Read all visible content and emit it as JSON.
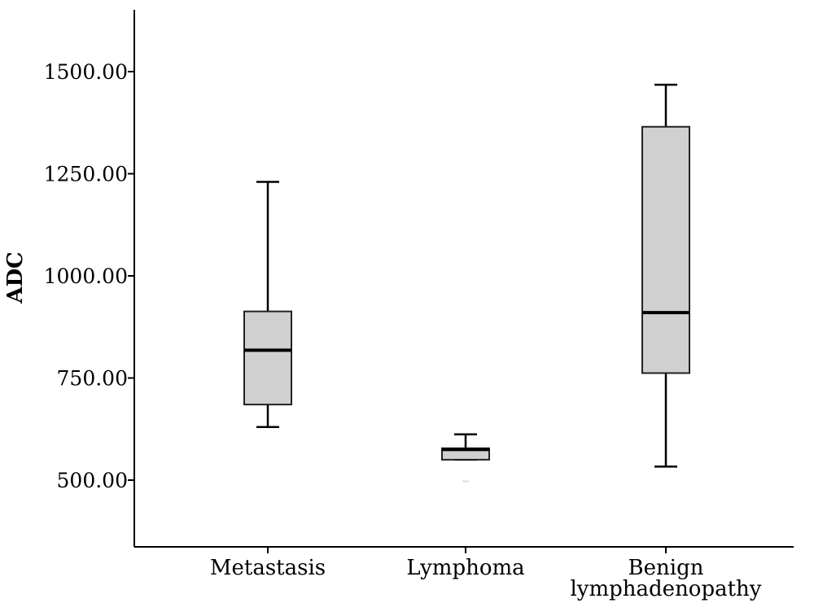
{
  "chart_data": {
    "type": "boxplot",
    "title": "",
    "xlabel": "",
    "ylabel": "ADC",
    "ylim": [
      350,
      1650
    ],
    "yticks": [
      500,
      750,
      1000,
      1250,
      1500
    ],
    "ytick_labels": [
      "500.00",
      "750.00",
      "1000.00",
      "1250.00",
      "1500.00"
    ],
    "grid": false,
    "legend": "none",
    "box_fill": "#d0d0d0",
    "categories": [
      {
        "label_lines": [
          "Metastasis"
        ],
        "min": 630,
        "q1": 685,
        "median": 818,
        "q3": 913,
        "max": 1230,
        "outliers": []
      },
      {
        "label_lines": [
          "Lymphoma"
        ],
        "min": 550,
        "q1": 550,
        "median": 575,
        "q3": 578,
        "max": 612,
        "outliers": [
          497
        ]
      },
      {
        "label_lines": [
          "Benign",
          "lymphadenopathy"
        ],
        "min": 533,
        "q1": 762,
        "median": 910,
        "q3": 1365,
        "max": 1468,
        "outliers": []
      }
    ]
  }
}
